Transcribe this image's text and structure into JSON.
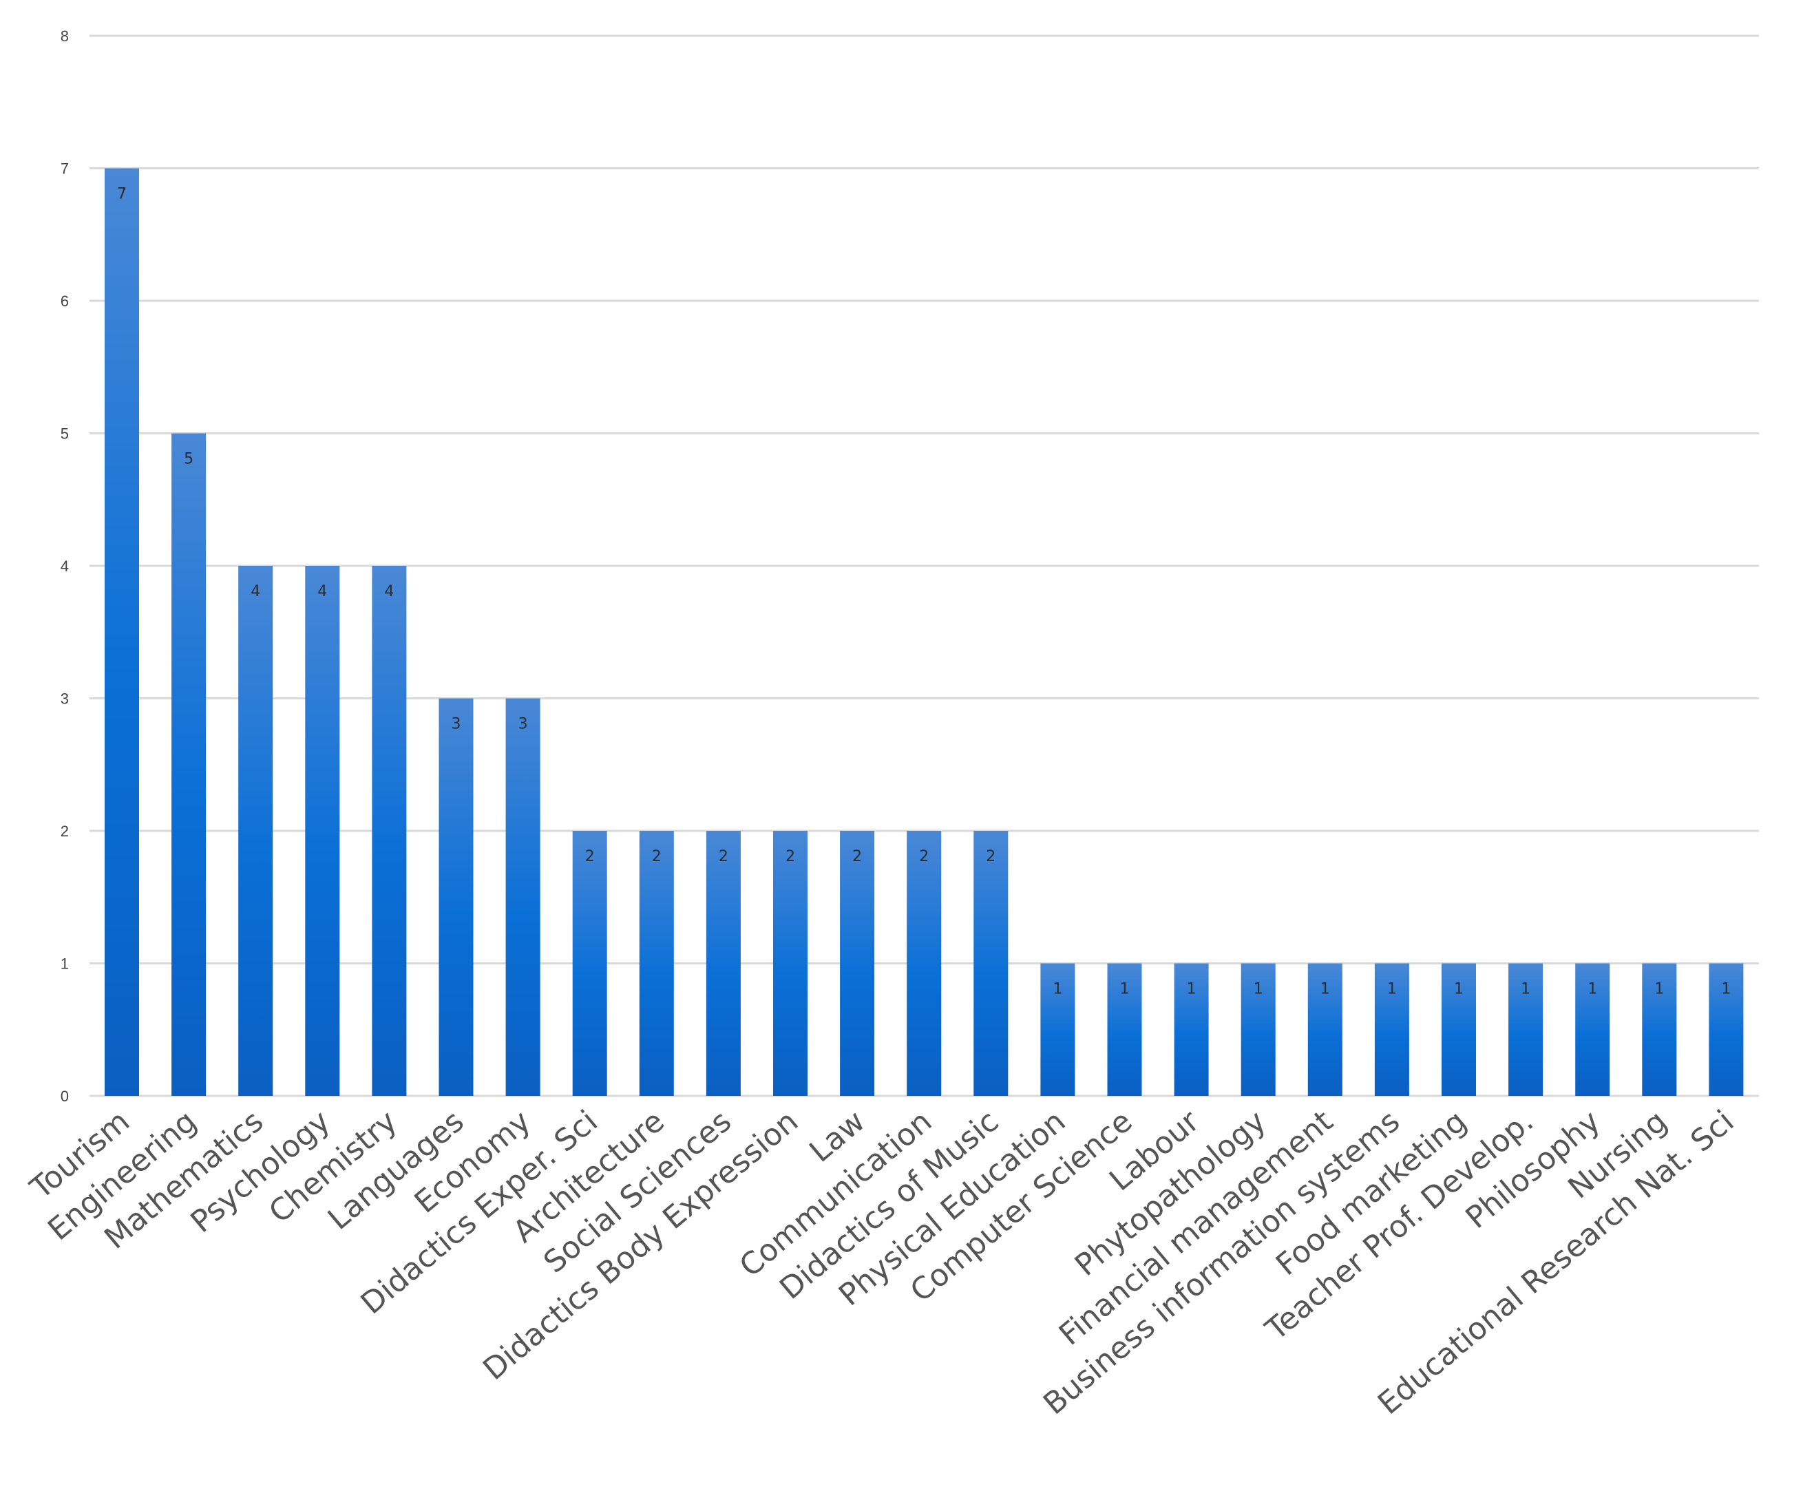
{
  "chart_data": {
    "type": "bar",
    "categories": [
      "Tourism",
      "Engineering",
      "Mathematics",
      "Psychology",
      "Chemistry",
      "Languages",
      "Economy",
      "Didactics Exper. Sci",
      "Architecture",
      "Social Sciences",
      "Didactics Body Expression",
      "Law",
      "Communication",
      "Didactics of Music",
      "Physical Education",
      "Computer Science",
      "Labour",
      "Phytopathology",
      "Financial management",
      "Business information systems",
      "Food marketing",
      "Teacher Prof. Develop.",
      "Philosophy",
      "Nursing",
      "Educational Research Nat. Sci"
    ],
    "values": [
      7,
      5,
      4,
      4,
      4,
      3,
      3,
      2,
      2,
      2,
      2,
      2,
      2,
      2,
      1,
      1,
      1,
      1,
      1,
      1,
      1,
      1,
      1,
      1,
      1
    ],
    "y_ticks": [
      "0",
      "1",
      "2",
      "3",
      "4",
      "5",
      "6",
      "7",
      "8"
    ],
    "ylim": [
      0,
      8
    ],
    "data_labels": true,
    "grid": true,
    "legend": "none",
    "colors": {
      "bar_top": "#4a88d6",
      "bar_mid": "#0a6fd6",
      "bar_bottom": "#0b5fc2",
      "grid": "#d9d9d9",
      "tick_text": "#555555",
      "data_label_text": "#2b2b2b"
    }
  }
}
